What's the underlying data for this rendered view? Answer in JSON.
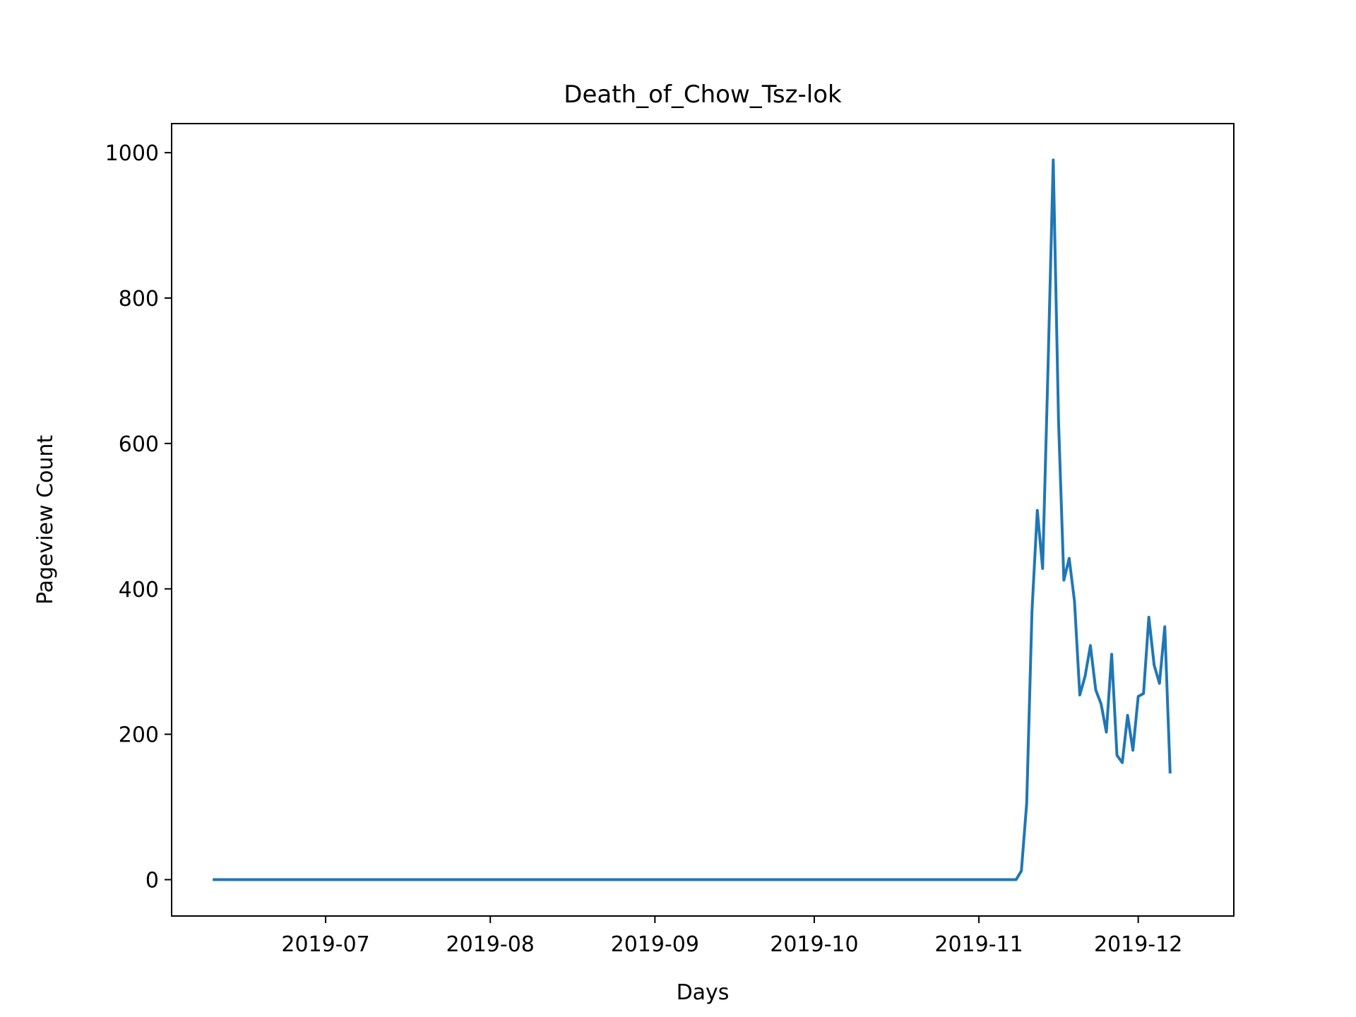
{
  "chart_data": {
    "type": "line",
    "title": "Death_of_Chow_Tsz-lok",
    "xlabel": "Days",
    "ylabel": "Pageview Count",
    "xlim": [
      "2019-06-02",
      "2019-12-19"
    ],
    "ylim": [
      -50,
      1040
    ],
    "xticks": [
      {
        "date": "2019-07-01",
        "label": "2019-07"
      },
      {
        "date": "2019-08-01",
        "label": "2019-08"
      },
      {
        "date": "2019-09-01",
        "label": "2019-09"
      },
      {
        "date": "2019-10-01",
        "label": "2019-10"
      },
      {
        "date": "2019-11-01",
        "label": "2019-11"
      },
      {
        "date": "2019-12-01",
        "label": "2019-12"
      }
    ],
    "yticks": [
      {
        "value": 0,
        "label": "0"
      },
      {
        "value": 200,
        "label": "200"
      },
      {
        "value": 400,
        "label": "400"
      },
      {
        "value": 600,
        "label": "600"
      },
      {
        "value": 800,
        "label": "800"
      },
      {
        "value": 1000,
        "label": "1000"
      }
    ],
    "grid": false,
    "legend": "none",
    "line_color": "#1f77b4",
    "series": [
      {
        "points": [
          [
            "2019-06-10",
            0
          ],
          [
            "2019-11-08",
            0
          ],
          [
            "2019-11-09",
            12
          ],
          [
            "2019-11-10",
            105
          ],
          [
            "2019-11-11",
            370
          ],
          [
            "2019-11-12",
            508
          ],
          [
            "2019-11-13",
            428
          ],
          [
            "2019-11-14",
            700
          ],
          [
            "2019-11-15",
            990
          ],
          [
            "2019-11-16",
            630
          ],
          [
            "2019-11-17",
            412
          ],
          [
            "2019-11-18",
            442
          ],
          [
            "2019-11-19",
            383
          ],
          [
            "2019-11-20",
            254
          ],
          [
            "2019-11-21",
            280
          ],
          [
            "2019-11-22",
            322
          ],
          [
            "2019-11-23",
            261
          ],
          [
            "2019-11-24",
            242
          ],
          [
            "2019-11-25",
            203
          ],
          [
            "2019-11-26",
            310
          ],
          [
            "2019-11-27",
            171
          ],
          [
            "2019-11-28",
            161
          ],
          [
            "2019-11-29",
            226
          ],
          [
            "2019-11-30",
            178
          ],
          [
            "2019-12-01",
            252
          ],
          [
            "2019-12-02",
            256
          ],
          [
            "2019-12-03",
            361
          ],
          [
            "2019-12-04",
            295
          ],
          [
            "2019-12-05",
            270
          ],
          [
            "2019-12-06",
            348
          ],
          [
            "2019-12-07",
            148
          ]
        ]
      }
    ]
  }
}
